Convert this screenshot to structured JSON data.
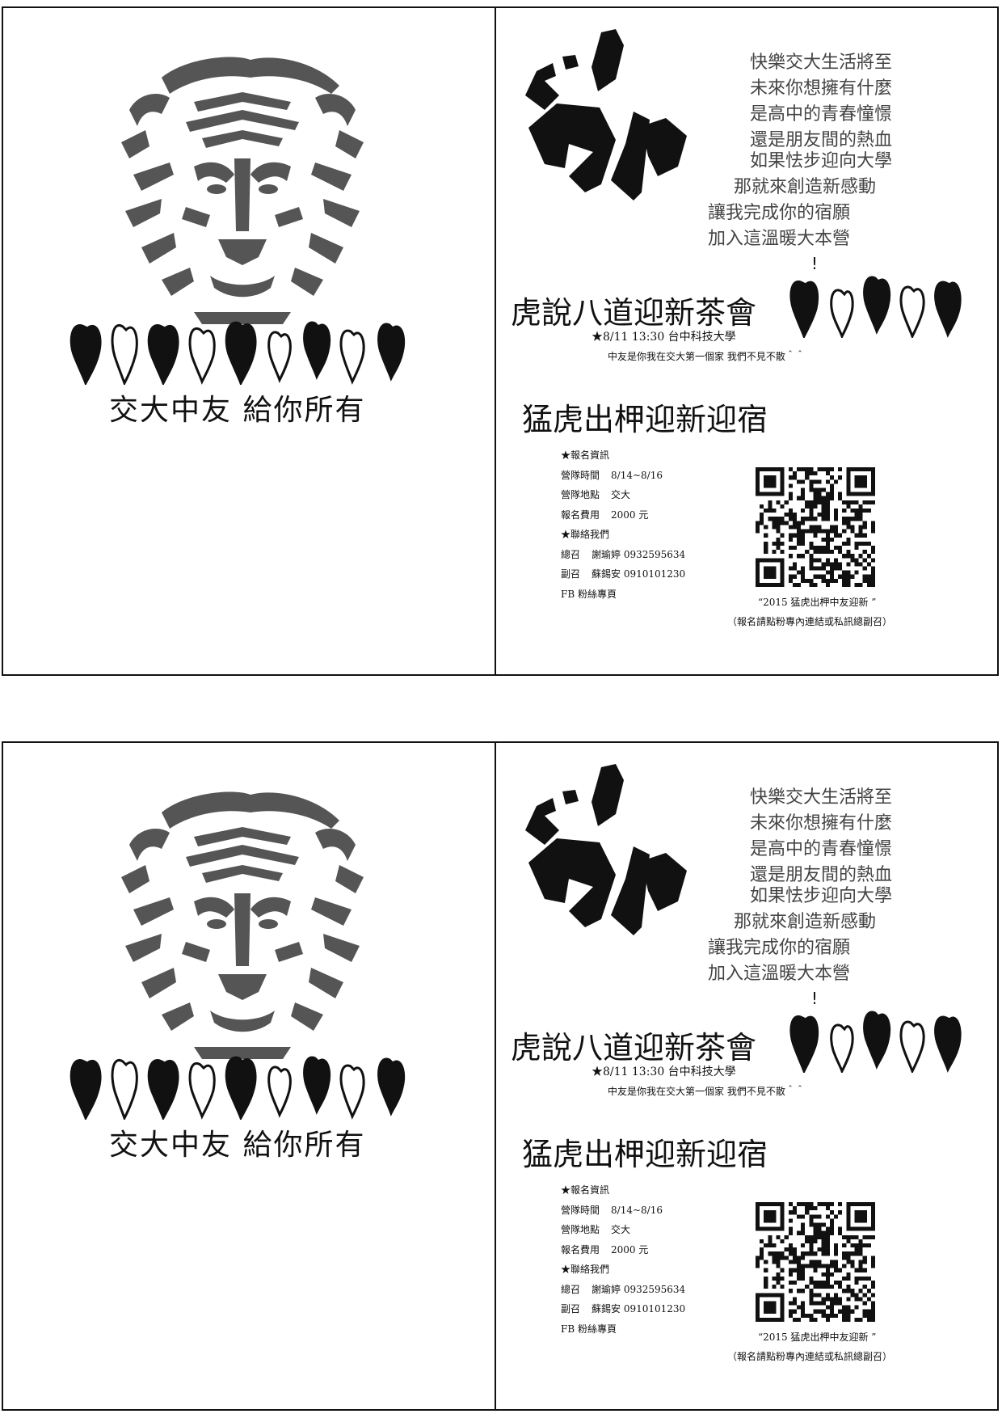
{
  "left": {
    "slogan": "交大中友  給你所有"
  },
  "poem": {
    "lines": [
      "快樂交大生活將至",
      "未來你想擁有什麼",
      "是高中的青春憧憬",
      "還是朋友間的熱血",
      "如果怯步迎向大學",
      "那就來創造新感動",
      "讓我完成你的宿願",
      "加入這溫暖大本營"
    ],
    "exclamation": "!"
  },
  "tea": {
    "title": "虎說八道迎新茶會",
    "info": "★8/11     13:30 台中科技大學",
    "note": "中友是你我在交大第一個家 我們不見不散＾＾"
  },
  "camp": {
    "title": "猛虎出柙迎新迎宿",
    "reg_heading": "★報名資訊",
    "time_label": "營隊時間",
    "time_value": "8/14~8/16",
    "place_label": "營隊地點",
    "place_value": "交大",
    "fee_label": "報名費用",
    "fee_value": "2000 元",
    "contact_heading": "★聯絡我們",
    "chief_label": "總召",
    "chief_value": "謝瑜婷 0932595634",
    "vice_label": "副召",
    "vice_value": "蘇錫安 0910101230",
    "fb_label": "FB 粉絲專頁"
  },
  "qr": {
    "caption": "“2015 猛虎出柙中友迎新 ”",
    "sub": "（報名請點粉專內連結或私訊總副召）"
  },
  "colors": {
    "ink": "#111111",
    "poem_gray": "#444444",
    "tiger_gray": "#555555"
  }
}
